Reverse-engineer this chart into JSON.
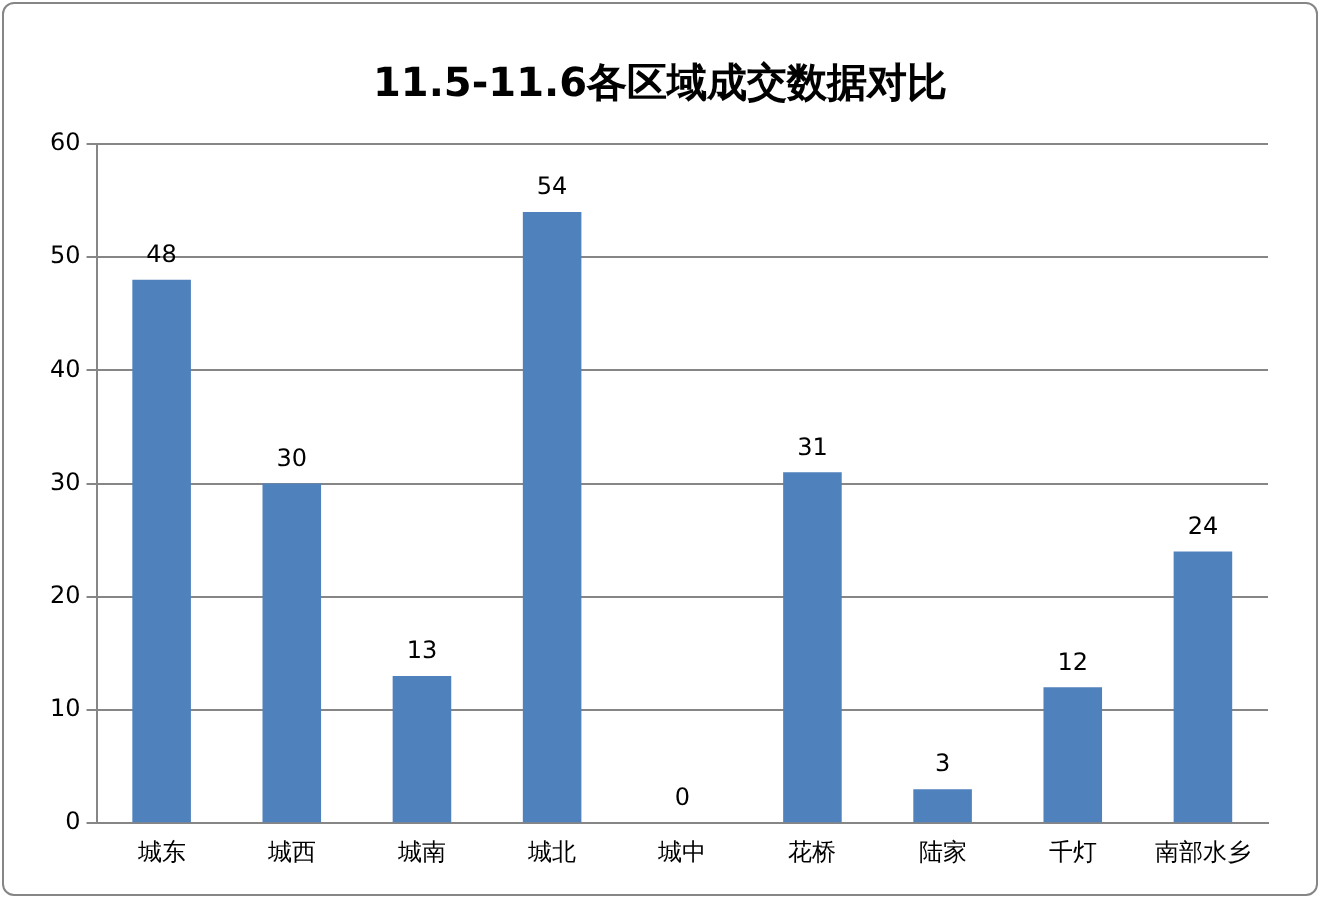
{
  "chart_data": {
    "type": "bar",
    "title": "11.5-11.6各区域成交数据对比",
    "categories": [
      "城东",
      "城西",
      "城南",
      "城北",
      "城中",
      "花桥",
      "陆家",
      "千灯",
      "南部水乡"
    ],
    "values": [
      48,
      30,
      13,
      54,
      0,
      31,
      3,
      12,
      24
    ],
    "color": "#4f81bd",
    "ylim": [
      0,
      60
    ],
    "yticks": [
      0,
      10,
      20,
      30,
      40,
      50,
      60
    ],
    "grid": "y",
    "data_labels": true
  }
}
